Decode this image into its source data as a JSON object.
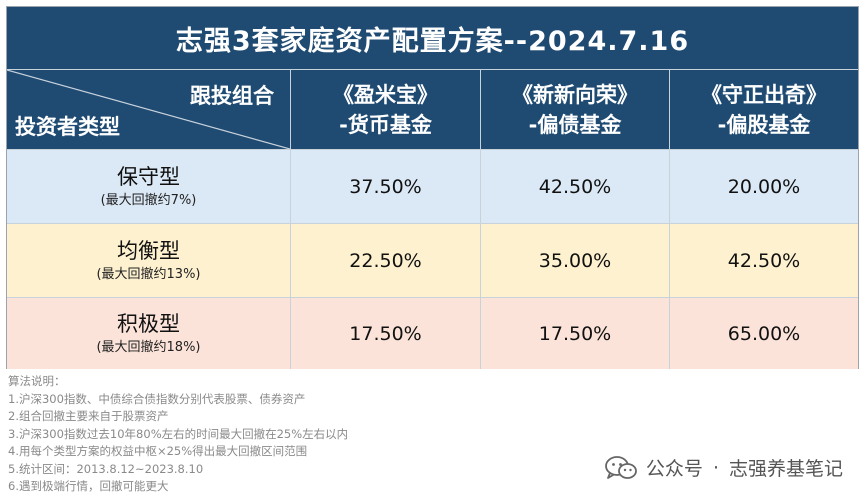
{
  "title": "志强3套家庭资产配置方案--2024.7.16",
  "header": {
    "corner_top": "跟投组合",
    "corner_bottom": "投资者类型",
    "funds": [
      {
        "line1": "《盈米宝》",
        "line2": "-货币基金"
      },
      {
        "line1": "《新新向荣》",
        "line2": "-偏债基金"
      },
      {
        "line1": "《守正出奇》",
        "line2": "-偏股基金"
      }
    ]
  },
  "rows": [
    {
      "type": "保守型",
      "drawdown": "(最大回撤约7%)",
      "values": [
        "37.50%",
        "42.50%",
        "20.00%"
      ]
    },
    {
      "type": "均衡型",
      "drawdown": "(最大回撤约13%)",
      "values": [
        "22.50%",
        "35.00%",
        "42.50%"
      ]
    },
    {
      "type": "积极型",
      "drawdown": "(最大回撤约18%)",
      "values": [
        "17.50%",
        "17.50%",
        "65.00%"
      ]
    }
  ],
  "notes": [
    "算法说明：",
    "1.沪深300指数、中债综合债指数分别代表股票、债券资产",
    "2.组合回撤主要来自于股票资产",
    "3.沪深300指数过去10年80%左右的时间最大回撤在25%左右以内",
    "4.用每个类型方案的权益中枢×25%得出最大回撤区间范围",
    "5.统计区间：2013.8.12~2023.8.10",
    "6.遇到极端行情，回撤可能更大"
  ],
  "watermark": {
    "label": "公众号",
    "dot": "·",
    "name": "志强养基笔记"
  },
  "colors": {
    "header": "#1f4b73",
    "row1": "#dbe8f5",
    "row2": "#fdf1cf",
    "row3": "#fbe3d9"
  }
}
